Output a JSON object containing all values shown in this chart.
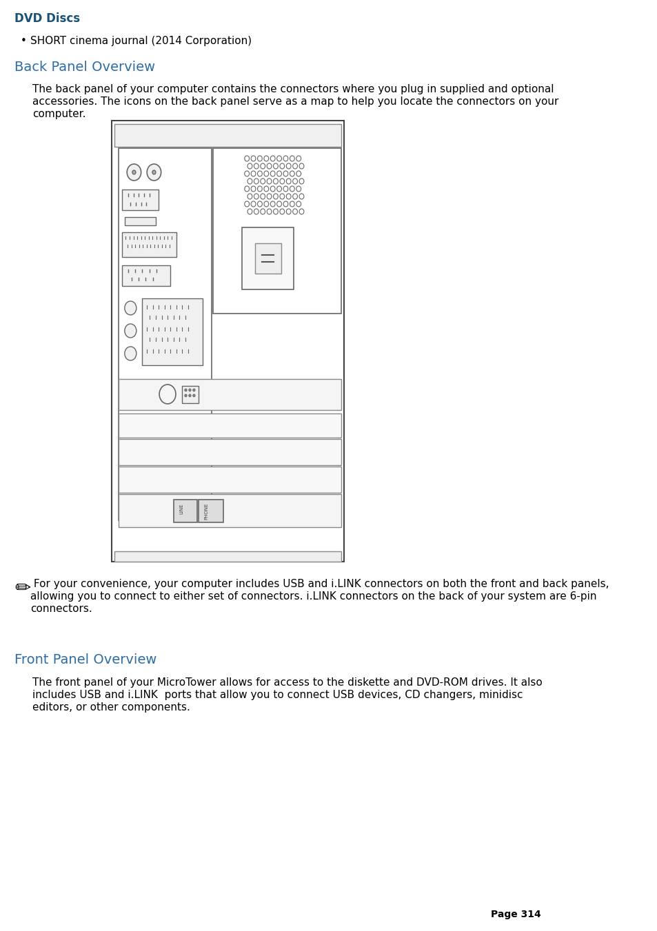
{
  "dvd_discs_title": "DVD Discs",
  "dvd_discs_color": "#1a5276",
  "bullet_text": "SHORT cinema journal (2014 Corporation)",
  "back_panel_title": "Back Panel Overview",
  "back_panel_color": "#2e6da4",
  "back_panel_desc": "The back panel of your computer contains the connectors where you plug in supplied and optional\naccessories. The icons on the back panel serve as a map to help you locate the connectors on your\ncomputer.",
  "note_text": " For your convenience, your computer includes USB and i.LINK connectors on both the front and back panels,\nallowing you to connect to either set of connectors. i.LINK connectors on the back of your system are 6-pin\nconnectors.",
  "front_panel_title": "Front Panel Overview",
  "front_panel_color": "#2e6da4",
  "front_panel_desc": "The front panel of your MicroTower allows for access to the diskette and DVD-ROM drives. It also\nincludes USB and i.LINK  ports that allow you to connect USB devices, CD changers, minidisc\neditors, or other components.",
  "page_num": "Page 314",
  "bg_color": "#ffffff",
  "text_color": "#000000",
  "body_font_size": 11,
  "title_font_size": 16,
  "section_title_font_size": 14
}
